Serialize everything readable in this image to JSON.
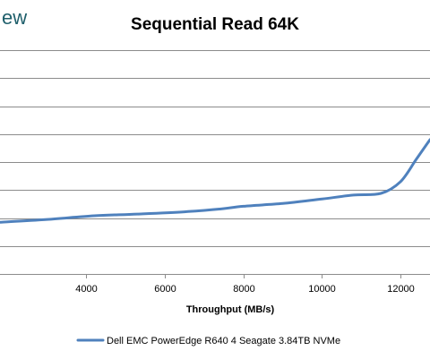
{
  "watermark": "ew",
  "colors": {
    "series": "#4f81bd",
    "grid": "#8c8c8c",
    "watermark": "#1f5f6b"
  },
  "chart_data": {
    "type": "line",
    "title": "Sequential Read 64K",
    "xlabel": "Throughput (MB/s)",
    "ylabel": "",
    "xlim": [
      1800,
      12750
    ],
    "ylim": [
      0,
      8
    ],
    "x_ticks": [
      {
        "value": 4000,
        "label": "4000"
      },
      {
        "value": 6000,
        "label": "6000"
      },
      {
        "value": 8000,
        "label": "8000"
      },
      {
        "value": 10000,
        "label": "10000"
      },
      {
        "value": 12000,
        "label": "12000"
      }
    ],
    "y_gridlines": [
      0,
      1,
      2,
      3,
      4,
      5,
      6,
      7,
      8
    ],
    "grid": true,
    "legend_position": "bottom",
    "series": [
      {
        "name": "Dell EMC PowerEdge R640 4 Seagate 3.84TB NVMe",
        "points": [
          {
            "x": 1800,
            "y": 1.85
          },
          {
            "x": 3000,
            "y": 1.95
          },
          {
            "x": 4200,
            "y": 2.08
          },
          {
            "x": 5300,
            "y": 2.14
          },
          {
            "x": 6500,
            "y": 2.22
          },
          {
            "x": 7400,
            "y": 2.32
          },
          {
            "x": 8000,
            "y": 2.42
          },
          {
            "x": 9000,
            "y": 2.52
          },
          {
            "x": 10000,
            "y": 2.68
          },
          {
            "x": 10800,
            "y": 2.82
          },
          {
            "x": 11500,
            "y": 2.88
          },
          {
            "x": 12000,
            "y": 3.3
          },
          {
            "x": 12400,
            "y": 4.1
          },
          {
            "x": 12750,
            "y": 4.8
          }
        ]
      }
    ]
  }
}
